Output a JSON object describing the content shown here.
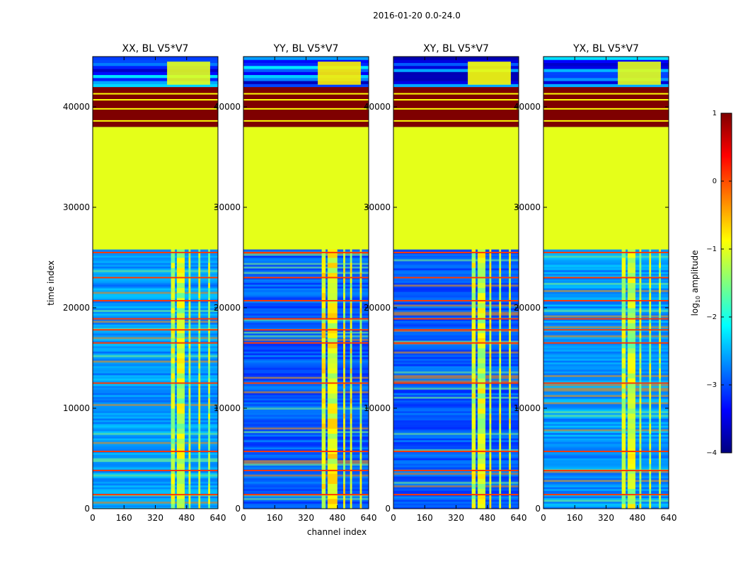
{
  "figure_title": "2016-01-20 0.0-24.0",
  "colors": {
    "jet": [
      "#00007f",
      "#0000ff",
      "#007fff",
      "#00ffff",
      "#7fff7f",
      "#ffff00",
      "#ff7f00",
      "#ff0000",
      "#7f0000"
    ]
  },
  "chart_data": [
    {
      "type": "heatmap",
      "title": "XX, BL V5*V7",
      "xlabel": "",
      "ylabel": "time index",
      "xlim": [
        0,
        640
      ],
      "ylim": [
        0,
        45000
      ],
      "xticks": [
        0,
        160,
        320,
        480,
        640
      ],
      "yticks": [
        0,
        10000,
        20000,
        30000,
        40000
      ],
      "rfi_channels": [
        [
          400,
          420
        ],
        [
          430,
          470
        ],
        [
          490,
          500
        ],
        [
          540,
          550
        ],
        [
          590,
          600
        ]
      ],
      "rfi_level": -1.2,
      "background_level": -2.6,
      "saturated_rows": [
        [
          38000,
          42000
        ]
      ],
      "uniform_rows": [
        [
          25800,
          38000
        ]
      ],
      "uniform_level": -1.0,
      "saturated_level": 1.0
    },
    {
      "type": "heatmap",
      "title": "YY, BL V5*V7",
      "xlabel": "channel index",
      "ylabel": "",
      "xlim": [
        0,
        640
      ],
      "ylim": [
        0,
        45000
      ],
      "xticks": [
        0,
        160,
        320,
        480,
        640
      ],
      "yticks": [
        0,
        10000,
        20000,
        30000,
        40000
      ],
      "rfi_channels": [
        [
          400,
          420
        ],
        [
          430,
          480
        ],
        [
          510,
          520
        ],
        [
          545,
          555
        ],
        [
          595,
          605
        ]
      ],
      "rfi_level": -1.0,
      "background_level": -2.9,
      "saturated_rows": [
        [
          38000,
          42000
        ]
      ],
      "uniform_rows": [
        [
          25800,
          38000
        ]
      ],
      "uniform_level": -1.0,
      "saturated_level": 1.0
    },
    {
      "type": "heatmap",
      "title": "XY, BL V5*V7",
      "xlabel": "",
      "ylabel": "",
      "xlim": [
        0,
        640
      ],
      "ylim": [
        0,
        45000
      ],
      "xticks": [
        0,
        160,
        320,
        480,
        640
      ],
      "yticks": [
        0,
        10000,
        20000,
        30000,
        40000
      ],
      "rfi_channels": [
        [
          400,
          420
        ],
        [
          430,
          470
        ],
        [
          490,
          500
        ],
        [
          540,
          550
        ],
        [
          590,
          600
        ]
      ],
      "rfi_level": -1.1,
      "background_level": -2.9,
      "saturated_rows": [
        [
          38000,
          42000
        ]
      ],
      "uniform_rows": [
        [
          25800,
          38000
        ]
      ],
      "uniform_level": -1.0,
      "saturated_level": 1.0
    },
    {
      "type": "heatmap",
      "title": "YX, BL V5*V7",
      "xlabel": "",
      "ylabel": "",
      "xlim": [
        0,
        640
      ],
      "ylim": [
        0,
        45000
      ],
      "xticks": [
        0,
        160,
        320,
        480,
        640
      ],
      "yticks": [
        0,
        10000,
        20000,
        30000,
        40000
      ],
      "rfi_channels": [
        [
          400,
          420
        ],
        [
          430,
          470
        ],
        [
          490,
          500
        ],
        [
          540,
          550
        ],
        [
          590,
          600
        ]
      ],
      "rfi_level": -1.2,
      "background_level": -2.6,
      "saturated_rows": [
        [
          38000,
          42000
        ]
      ],
      "uniform_rows": [
        [
          25800,
          38000
        ]
      ],
      "uniform_level": -1.0,
      "saturated_level": 1.0
    }
  ],
  "colorbar": {
    "label": "log$_{10}$ amplitude",
    "label_main": "log",
    "label_sub": "10",
    "label_rest": " amplitude",
    "vmin": -4,
    "vmax": 1,
    "ticks": [
      1,
      0,
      -1,
      -2,
      -3,
      -4
    ],
    "tick_labels": [
      "1",
      "0",
      "−1",
      "−2",
      "−3",
      "−4"
    ]
  }
}
